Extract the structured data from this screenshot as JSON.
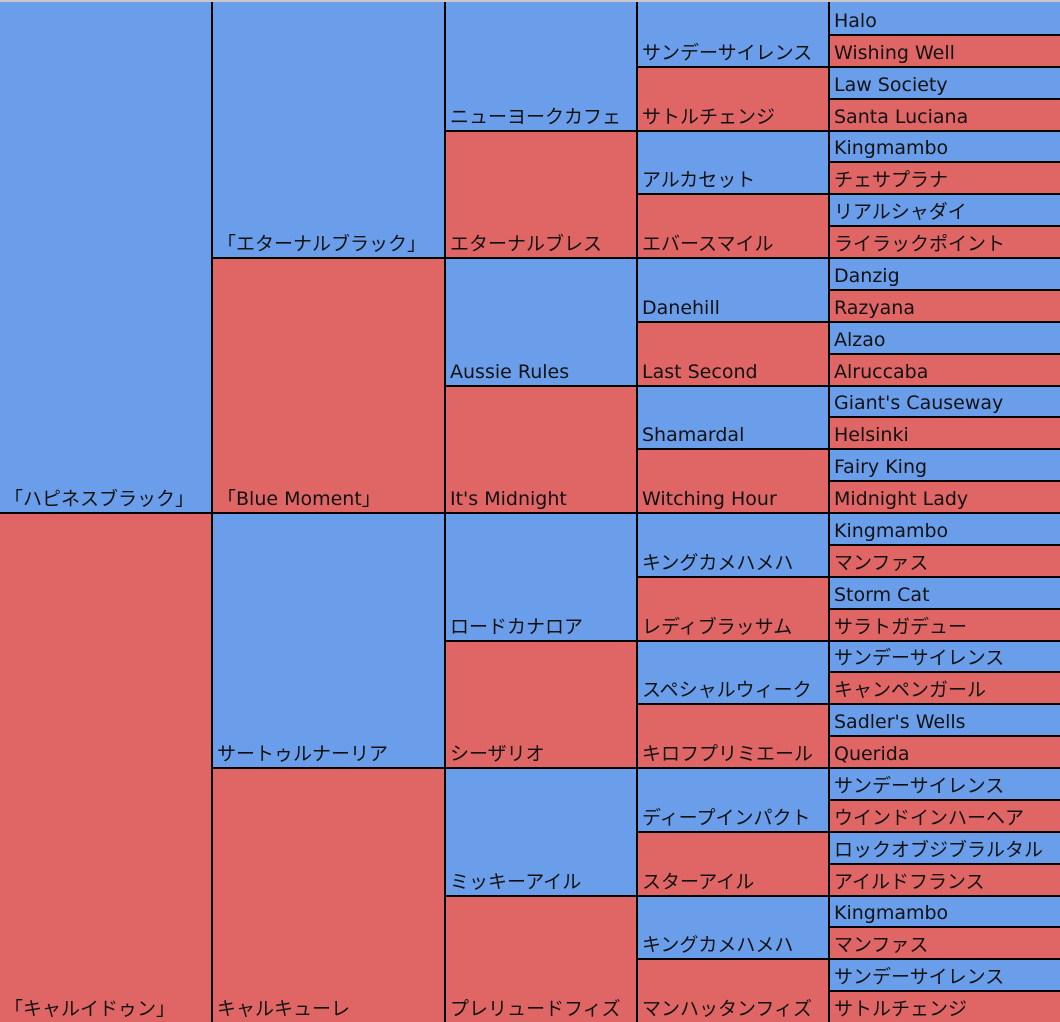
{
  "colors": {
    "male": "#6b9eea",
    "female": "#e06666",
    "border": "#000000"
  },
  "pedigree": [
    [
      "「ハピネスブラック」",
      "「キャルイドゥン」"
    ],
    [
      "「エターナルブラック」",
      "「Blue Moment」",
      "サートゥルナーリア",
      "キャルキューレ"
    ],
    [
      "ニューヨークカフェ",
      "エターナルブレス",
      "Aussie Rules",
      "It's Midnight",
      "ロードカナロア",
      "シーザリオ",
      "ミッキーアイル",
      "プレリュードフィズ"
    ],
    [
      "サンデーサイレンス",
      "サトルチェンジ",
      "アルカセット",
      "エバースマイル",
      "Danehill",
      "Last Second",
      "Shamardal",
      "Witching Hour",
      "キングカメハメハ",
      "レディブラッサム",
      "スペシャルウィーク",
      "キロフプリミエール",
      "ディープインパクト",
      "スターアイル",
      "キングカメハメハ",
      "マンハッタンフィズ"
    ],
    [
      "Halo",
      "Wishing Well",
      "Law Society",
      "Santa Luciana",
      "Kingmambo",
      "チェサプラナ",
      "リアルシャダイ",
      "ライラックポイント",
      "Danzig",
      "Razyana",
      "Alzao",
      "Alruccaba",
      "Giant's Causeway",
      "Helsinki",
      "Fairy King",
      "Midnight Lady",
      "Kingmambo",
      "マンファス",
      "Storm Cat",
      "サラトガデュー",
      "サンデーサイレンス",
      "キャンペンガール",
      "Sadler's Wells",
      "Querida",
      "サンデーサイレンス",
      "ウインドインハーヘア",
      "ロックオブジブラルタル",
      "アイルドフランス",
      "Kingmambo",
      "マンファス",
      "サンデーサイレンス",
      "サトルチェンジ"
    ]
  ]
}
